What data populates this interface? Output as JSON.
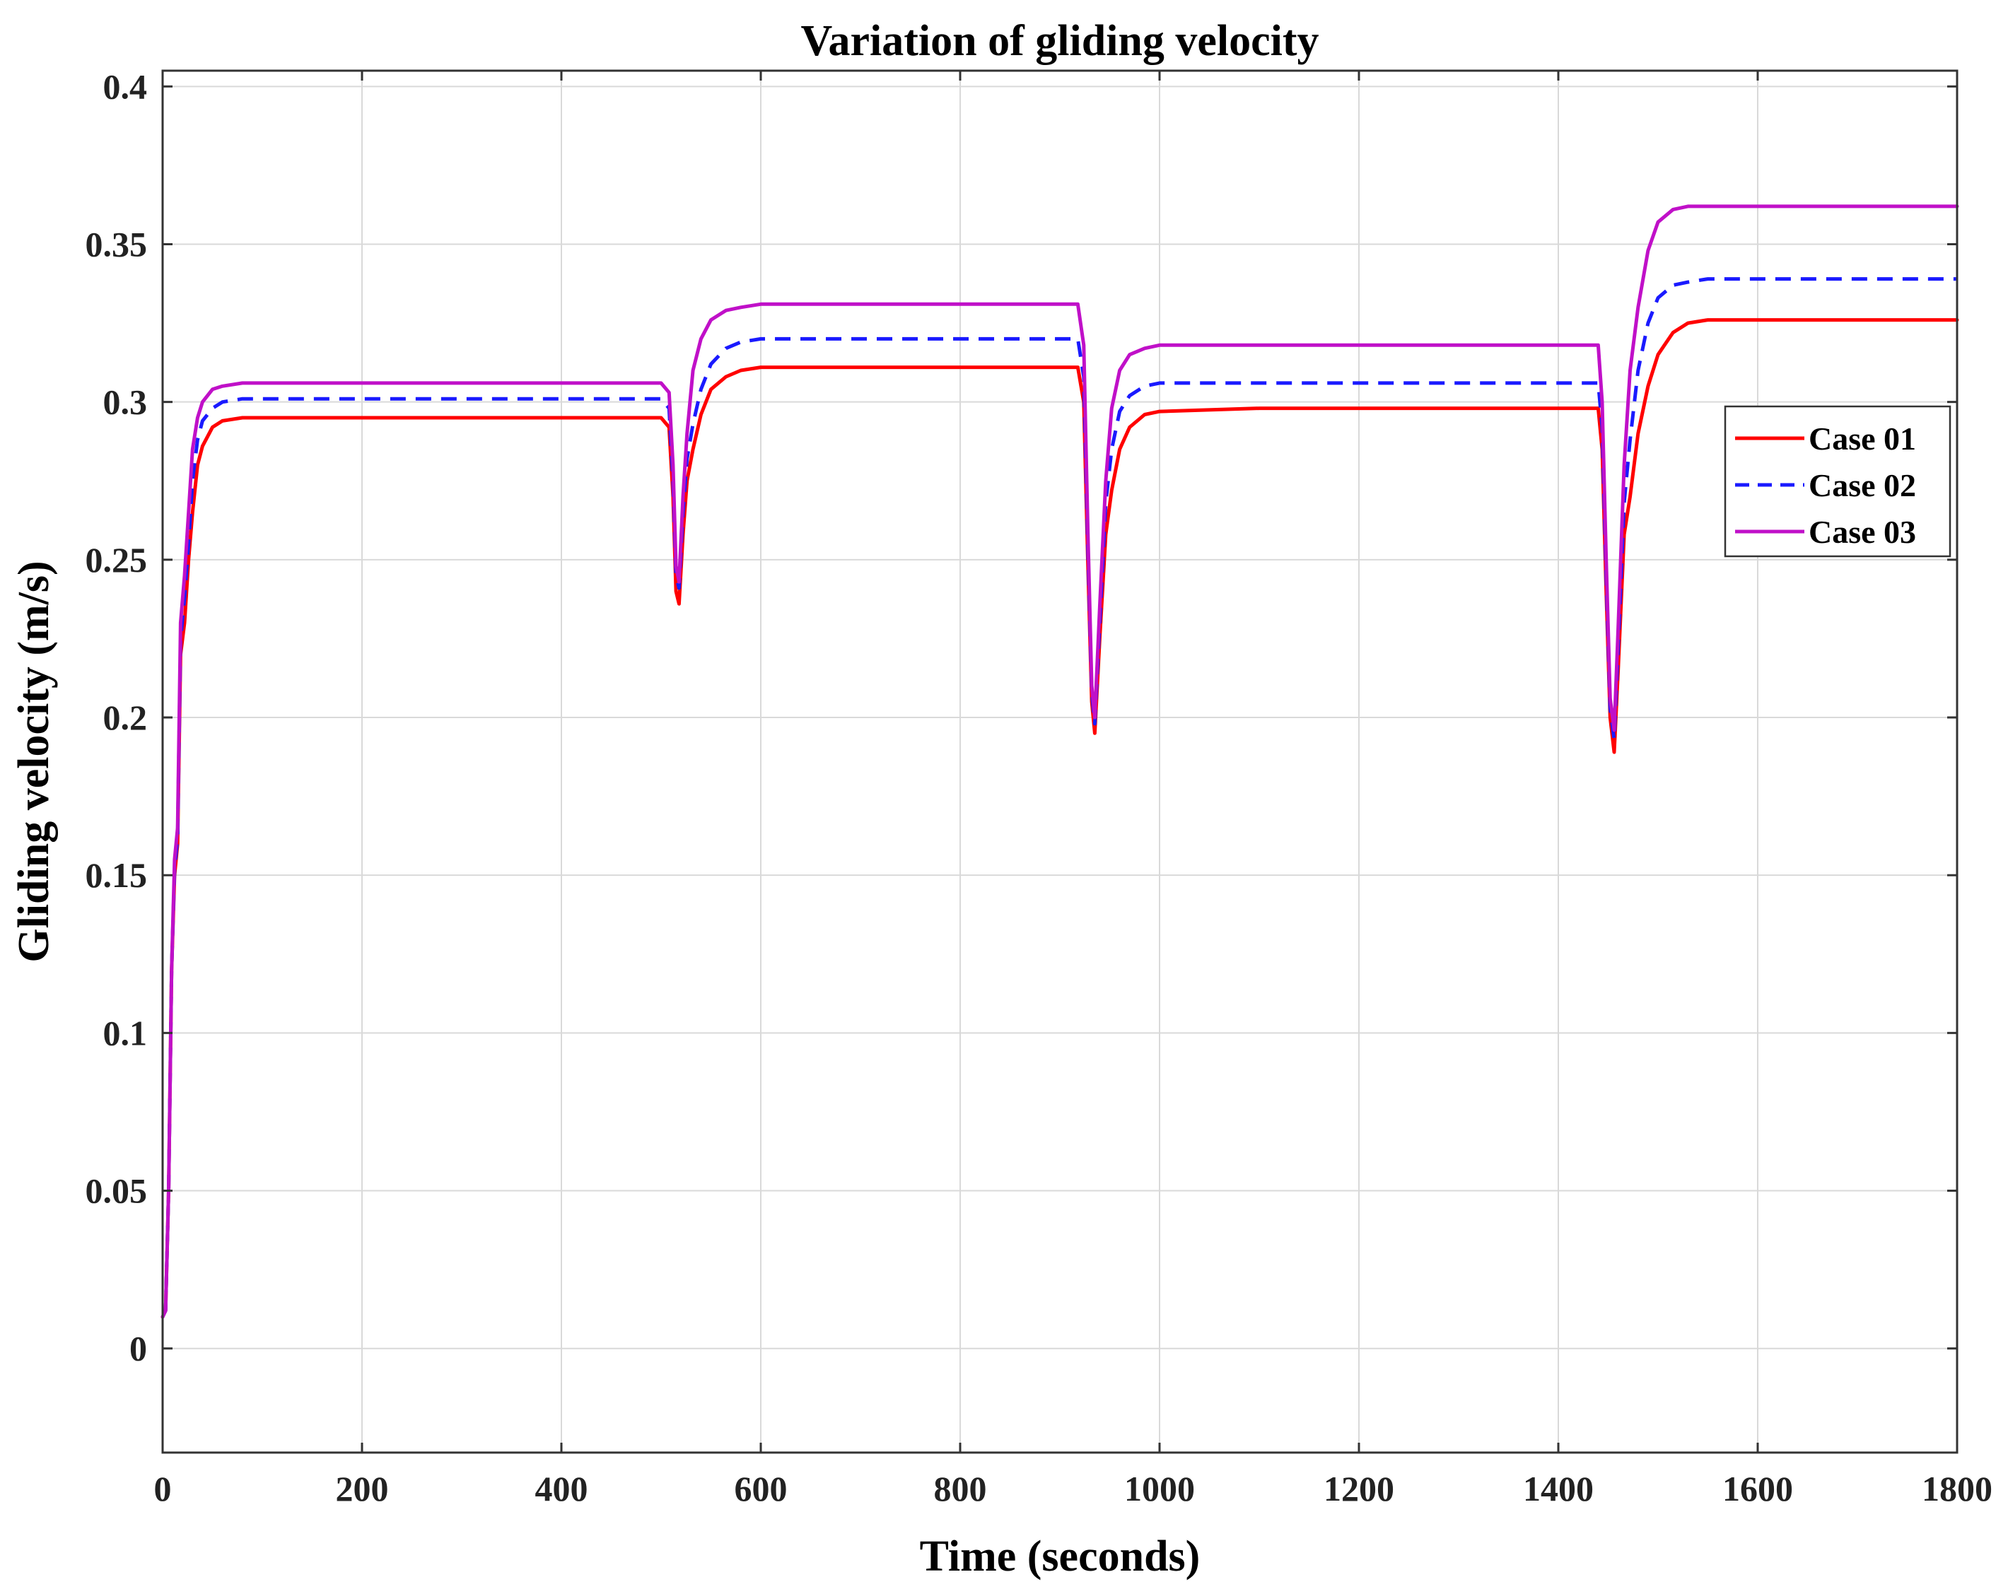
{
  "chart_data": {
    "type": "line",
    "title": "Variation of gliding velocity",
    "xlabel": "Time (seconds)",
    "ylabel": "Gliding velocity (m/s)",
    "xlim": [
      0,
      1800
    ],
    "ylim": [
      -0.033,
      0.405
    ],
    "xticks": [
      0,
      200,
      400,
      600,
      800,
      1000,
      1200,
      1400,
      1600,
      1800
    ],
    "yticks": [
      0,
      0.05,
      0.1,
      0.15,
      0.2,
      0.25,
      0.3,
      0.35,
      0.4
    ],
    "xtick_labels": [
      "0",
      "200",
      "400",
      "600",
      "800",
      "1000",
      "1200",
      "1400",
      "1600",
      "1800"
    ],
    "ytick_labels": [
      "0",
      "0.05",
      "0.1",
      "0.15",
      "0.2",
      "0.25",
      "0.3",
      "0.35",
      "0.4"
    ],
    "grid": true,
    "legend_position": "right",
    "series": [
      {
        "name": "Case 01",
        "color": "#ff0000",
        "dash": "solid",
        "x": [
          0,
          3,
          6,
          9,
          12,
          15,
          18,
          22,
          26,
          30,
          35,
          40,
          50,
          60,
          80,
          100,
          300,
          500,
          508,
          512,
          515,
          518,
          522,
          526,
          532,
          540,
          550,
          565,
          580,
          600,
          700,
          900,
          918,
          924,
          928,
          932,
          935,
          940,
          946,
          952,
          960,
          970,
          985,
          1000,
          1100,
          1300,
          1440,
          1444,
          1448,
          1452,
          1456,
          1460,
          1466,
          1472,
          1480,
          1490,
          1500,
          1515,
          1530,
          1550,
          1600,
          1700,
          1800
        ],
        "y": [
          0.01,
          0.012,
          0.05,
          0.12,
          0.15,
          0.16,
          0.22,
          0.23,
          0.25,
          0.265,
          0.28,
          0.286,
          0.292,
          0.294,
          0.295,
          0.295,
          0.295,
          0.295,
          0.292,
          0.27,
          0.24,
          0.236,
          0.258,
          0.275,
          0.285,
          0.296,
          0.304,
          0.308,
          0.31,
          0.311,
          0.311,
          0.311,
          0.311,
          0.3,
          0.25,
          0.205,
          0.195,
          0.225,
          0.258,
          0.272,
          0.285,
          0.292,
          0.296,
          0.297,
          0.298,
          0.298,
          0.298,
          0.285,
          0.24,
          0.2,
          0.189,
          0.215,
          0.258,
          0.27,
          0.29,
          0.305,
          0.315,
          0.322,
          0.325,
          0.326,
          0.326,
          0.326,
          0.326
        ]
      },
      {
        "name": "Case 02",
        "color": "#1a1aff",
        "dash": "dashed",
        "x": [
          0,
          3,
          6,
          9,
          12,
          15,
          18,
          22,
          26,
          30,
          35,
          40,
          50,
          60,
          80,
          100,
          300,
          500,
          508,
          512,
          515,
          518,
          522,
          526,
          532,
          540,
          550,
          565,
          580,
          600,
          700,
          900,
          918,
          924,
          928,
          932,
          935,
          940,
          946,
          952,
          960,
          970,
          985,
          1000,
          1100,
          1300,
          1440,
          1444,
          1448,
          1452,
          1456,
          1460,
          1466,
          1472,
          1480,
          1490,
          1500,
          1515,
          1530,
          1550,
          1600,
          1700,
          1800
        ],
        "y": [
          0.01,
          0.012,
          0.05,
          0.12,
          0.152,
          0.162,
          0.225,
          0.238,
          0.255,
          0.275,
          0.288,
          0.294,
          0.298,
          0.3,
          0.301,
          0.301,
          0.301,
          0.301,
          0.298,
          0.275,
          0.245,
          0.241,
          0.265,
          0.282,
          0.293,
          0.304,
          0.312,
          0.317,
          0.319,
          0.32,
          0.32,
          0.32,
          0.32,
          0.308,
          0.255,
          0.208,
          0.198,
          0.23,
          0.268,
          0.285,
          0.297,
          0.302,
          0.305,
          0.306,
          0.306,
          0.306,
          0.306,
          0.292,
          0.245,
          0.203,
          0.193,
          0.222,
          0.268,
          0.288,
          0.31,
          0.325,
          0.333,
          0.337,
          0.338,
          0.339,
          0.339,
          0.339,
          0.339
        ]
      },
      {
        "name": "Case 03",
        "color": "#c010c8",
        "dash": "solid",
        "x": [
          0,
          3,
          6,
          9,
          12,
          15,
          18,
          22,
          26,
          30,
          35,
          40,
          50,
          60,
          80,
          100,
          300,
          500,
          508,
          512,
          515,
          518,
          522,
          526,
          532,
          540,
          550,
          565,
          580,
          600,
          700,
          900,
          918,
          924,
          928,
          932,
          935,
          940,
          946,
          952,
          960,
          970,
          985,
          1000,
          1100,
          1300,
          1440,
          1444,
          1448,
          1452,
          1456,
          1460,
          1466,
          1472,
          1480,
          1490,
          1500,
          1515,
          1530,
          1550,
          1600,
          1700,
          1800
        ],
        "y": [
          0.01,
          0.012,
          0.05,
          0.12,
          0.155,
          0.165,
          0.23,
          0.245,
          0.265,
          0.285,
          0.295,
          0.3,
          0.304,
          0.305,
          0.306,
          0.306,
          0.306,
          0.306,
          0.303,
          0.28,
          0.248,
          0.243,
          0.27,
          0.29,
          0.31,
          0.32,
          0.326,
          0.329,
          0.33,
          0.331,
          0.331,
          0.331,
          0.331,
          0.318,
          0.26,
          0.21,
          0.2,
          0.235,
          0.275,
          0.298,
          0.31,
          0.315,
          0.317,
          0.318,
          0.318,
          0.318,
          0.318,
          0.3,
          0.25,
          0.206,
          0.196,
          0.228,
          0.28,
          0.31,
          0.33,
          0.348,
          0.357,
          0.361,
          0.362,
          0.362,
          0.362,
          0.362,
          0.362
        ]
      }
    ]
  }
}
